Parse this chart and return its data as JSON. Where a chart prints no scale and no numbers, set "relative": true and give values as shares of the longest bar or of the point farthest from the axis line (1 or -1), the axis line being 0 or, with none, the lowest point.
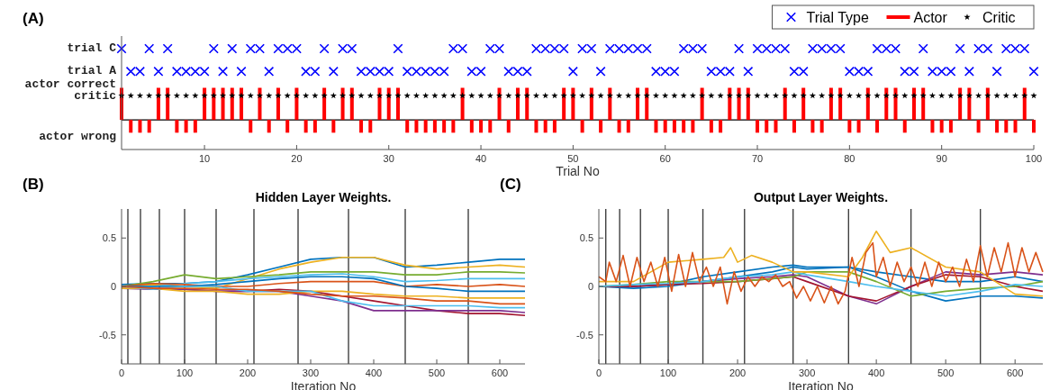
{
  "chart_data": [
    {
      "type": "scatter",
      "relative": true,
      "annotations": [
        "(A)",
        "trial C",
        "trial A",
        "actor correct",
        "critic",
        "actor wrong"
      ],
      "xlabel": "Trial No",
      "xlim": [
        1,
        100
      ],
      "xticks": [
        10,
        20,
        30,
        40,
        50,
        60,
        70,
        80,
        90,
        100
      ],
      "legend": "top right",
      "x": [
        1,
        2,
        3,
        4,
        5,
        6,
        7,
        8,
        9,
        10,
        11,
        12,
        13,
        14,
        15,
        16,
        17,
        18,
        19,
        20,
        21,
        22,
        23,
        24,
        25,
        26,
        27,
        28,
        29,
        30,
        31,
        32,
        33,
        34,
        35,
        36,
        37,
        38,
        39,
        40,
        41,
        42,
        43,
        44,
        45,
        46,
        47,
        48,
        49,
        50,
        51,
        52,
        53,
        54,
        55,
        56,
        57,
        58,
        59,
        60,
        61,
        62,
        63,
        64,
        65,
        66,
        67,
        68,
        69,
        70,
        71,
        72,
        73,
        74,
        75,
        76,
        77,
        78,
        79,
        80,
        81,
        82,
        83,
        84,
        85,
        86,
        87,
        88,
        89,
        90,
        91,
        92,
        93,
        94,
        95,
        96,
        97,
        98,
        99,
        100
      ],
      "series": [
        {
          "name": "Trial Type",
          "marker": "cross",
          "color": "#0000ff",
          "values": [
            1,
            0.68,
            0.68,
            1,
            0.68,
            1,
            0.68,
            0.68,
            0.68,
            0.68,
            1,
            0.68,
            1,
            0.68,
            1,
            1,
            0.68,
            1,
            1,
            1,
            0.68,
            0.68,
            1,
            0.68,
            1,
            1,
            0.68,
            0.68,
            0.68,
            0.68,
            1,
            0.68,
            0.68,
            0.68,
            0.68,
            0.68,
            1,
            1,
            0.68,
            0.68,
            1,
            1,
            0.68,
            0.68,
            0.68,
            1,
            1,
            1,
            1,
            0.68,
            1,
            1,
            0.68,
            1,
            1,
            1,
            1,
            1,
            0.68,
            0.68,
            0.68,
            1,
            1,
            1,
            0.68,
            0.68,
            0.68,
            1,
            0.68,
            1,
            1,
            1,
            1,
            0.68,
            0.68,
            1,
            1,
            1,
            1,
            0.68,
            0.68,
            0.68,
            1,
            1,
            1,
            0.68,
            0.68,
            1,
            0.68,
            0.68,
            0.68,
            1,
            0.68,
            1,
            1,
            0.68,
            1,
            1,
            1,
            0.68
          ]
        },
        {
          "name": "Actor",
          "type": "bar",
          "color": "#ff0000",
          "values": [
            0.45,
            -0.18,
            -0.18,
            -0.18,
            0.45,
            0.45,
            -0.18,
            -0.18,
            -0.18,
            0.45,
            0.45,
            0.45,
            0.45,
            0.45,
            -0.18,
            0.45,
            -0.18,
            0.45,
            -0.18,
            0.45,
            -0.18,
            -0.18,
            0.45,
            -0.18,
            0.45,
            0.45,
            -0.18,
            -0.18,
            0.45,
            0.45,
            0.45,
            -0.18,
            -0.18,
            -0.18,
            -0.18,
            -0.18,
            -0.18,
            0.45,
            -0.18,
            -0.18,
            -0.18,
            0.45,
            -0.18,
            0.45,
            0.45,
            -0.18,
            -0.18,
            -0.18,
            0.45,
            0.45,
            -0.18,
            0.45,
            -0.18,
            0.45,
            -0.18,
            -0.18,
            0.45,
            0.45,
            -0.18,
            -0.18,
            -0.18,
            -0.18,
            -0.18,
            0.45,
            -0.18,
            -0.18,
            0.45,
            0.45,
            0.45,
            -0.18,
            -0.18,
            -0.18,
            0.45,
            -0.18,
            0.45,
            -0.18,
            -0.18,
            0.45,
            0.45,
            -0.18,
            -0.18,
            0.45,
            -0.18,
            0.45,
            0.45,
            -0.18,
            0.45,
            0.45,
            -0.18,
            -0.18,
            -0.18,
            0.45,
            0.45,
            -0.18,
            0.45,
            -0.18,
            -0.18,
            -0.18,
            0.45,
            -0.18
          ]
        },
        {
          "name": "Critic",
          "marker": "star",
          "color": "#000000",
          "values": [
            0.34,
            0.34,
            0.34,
            0.34,
            0.34,
            0.34,
            0.34,
            0.34,
            0.34,
            0.34,
            0.34,
            0.34,
            0.34,
            0.34,
            0.34,
            0.34,
            0.34,
            0.34,
            0.34,
            0.34,
            0.34,
            0.34,
            0.34,
            0.34,
            0.34,
            0.34,
            0.34,
            0.34,
            0.34,
            0.34,
            0.34,
            0.34,
            0.34,
            0.34,
            0.34,
            0.34,
            0.34,
            0.34,
            0.34,
            0.34,
            0.34,
            0.34,
            0.34,
            0.34,
            0.34,
            0.34,
            0.34,
            0.34,
            0.34,
            0.34,
            0.34,
            0.34,
            0.34,
            0.34,
            0.34,
            0.34,
            0.34,
            0.34,
            0.34,
            0.34,
            0.34,
            0.34,
            0.34,
            0.34,
            0.34,
            0.34,
            0.34,
            0.34,
            0.34,
            0.34,
            0.34,
            0.34,
            0.34,
            0.34,
            0.34,
            0.34,
            0.34,
            0.34,
            0.34,
            0.34,
            0.34,
            0.34,
            0.34,
            0.34,
            0.34,
            0.34,
            0.34,
            0.34,
            0.34,
            0.34,
            0.34,
            0.34,
            0.34,
            0.34,
            0.34,
            0.34,
            0.34,
            0.34,
            0.34,
            0.34
          ]
        }
      ]
    },
    {
      "type": "line",
      "annotations": [
        "(B)"
      ],
      "title": "Hidden Layer Weights.",
      "xlabel": "Iteration No",
      "xlim": [
        0,
        640
      ],
      "xticks": [
        0,
        100,
        200,
        300,
        400,
        500,
        600
      ],
      "ylim": [
        -0.8,
        0.8
      ],
      "yticks": [
        -0.5,
        0,
        0.5
      ],
      "ref_lines": [
        {
          "axis": "x",
          "value": 10,
          "color": "#404040"
        },
        {
          "axis": "x",
          "value": 30,
          "color": "#404040"
        },
        {
          "axis": "x",
          "value": 60,
          "color": "#404040"
        },
        {
          "axis": "x",
          "value": 100,
          "color": "#404040"
        },
        {
          "axis": "x",
          "value": 150,
          "color": "#404040"
        },
        {
          "axis": "x",
          "value": 210,
          "color": "#404040"
        },
        {
          "axis": "x",
          "value": 280,
          "color": "#404040"
        },
        {
          "axis": "x",
          "value": 360,
          "color": "#404040"
        },
        {
          "axis": "x",
          "value": 450,
          "color": "#404040"
        },
        {
          "axis": "x",
          "value": 550,
          "color": "#404040"
        }
      ],
      "x": [
        0,
        50,
        100,
        150,
        200,
        250,
        300,
        350,
        400,
        450,
        500,
        550,
        600,
        640
      ],
      "series": [
        {
          "color": "#0072bd",
          "values": [
            0.02,
            0.03,
            0.03,
            0.05,
            0.12,
            0.2,
            0.28,
            0.3,
            0.3,
            0.2,
            0.22,
            0.25,
            0.28,
            0.28
          ]
        },
        {
          "color": "#edb120",
          "values": [
            0,
            0.02,
            0,
            -0.02,
            0.08,
            0.18,
            0.25,
            0.3,
            0.3,
            0.22,
            0.18,
            0.2,
            0.22,
            0.2
          ]
        },
        {
          "color": "#77ac30",
          "values": [
            0,
            0.05,
            0.12,
            0.08,
            0.1,
            0.12,
            0.15,
            0.15,
            0.15,
            0.12,
            0.12,
            0.15,
            0.15,
            0.14
          ]
        },
        {
          "color": "#4dbeee",
          "values": [
            0,
            0,
            0.03,
            0.05,
            0.08,
            0.1,
            0.12,
            0.13,
            0.1,
            0.05,
            0.06,
            0.08,
            0.08,
            0.08
          ]
        },
        {
          "color": "#d95319",
          "values": [
            0,
            0.03,
            0.02,
            0,
            0,
            0.03,
            0.05,
            0.05,
            0.05,
            0,
            0.02,
            0,
            0.02,
            0
          ]
        },
        {
          "color": "#a2142f",
          "values": [
            0,
            -0.02,
            -0.03,
            -0.05,
            -0.05,
            -0.03,
            -0.05,
            -0.1,
            -0.15,
            -0.2,
            -0.25,
            -0.28,
            -0.28,
            -0.3
          ]
        },
        {
          "color": "#7e2f8e",
          "values": [
            -0.02,
            -0.03,
            -0.03,
            -0.05,
            -0.05,
            -0.05,
            -0.1,
            -0.15,
            -0.25,
            -0.25,
            -0.25,
            -0.25,
            -0.25,
            -0.27
          ]
        },
        {
          "color": "#edb120",
          "values": [
            -0.02,
            -0.02,
            -0.05,
            -0.05,
            -0.08,
            -0.08,
            -0.05,
            -0.05,
            -0.08,
            -0.1,
            -0.1,
            -0.12,
            -0.12,
            -0.12
          ]
        },
        {
          "color": "#0072bd",
          "values": [
            0,
            0,
            0,
            0.02,
            0.05,
            0.08,
            0.1,
            0.1,
            0.08,
            0,
            -0.02,
            -0.05,
            -0.05,
            -0.05
          ]
        },
        {
          "color": "#4dbeee",
          "values": [
            0,
            -0.03,
            0,
            0,
            -0.05,
            -0.05,
            -0.05,
            -0.15,
            -0.2,
            -0.2,
            -0.2,
            -0.2,
            -0.22,
            -0.22
          ]
        },
        {
          "color": "#d95319",
          "values": [
            0,
            -0.02,
            -0.02,
            -0.03,
            -0.03,
            -0.05,
            -0.08,
            -0.1,
            -0.1,
            -0.12,
            -0.15,
            -0.15,
            -0.18,
            -0.18
          ]
        }
      ]
    },
    {
      "type": "line",
      "annotations": [
        "(C)"
      ],
      "title": "Output Layer Weights.",
      "xlabel": "Iteration No",
      "xlim": [
        0,
        640
      ],
      "xticks": [
        0,
        100,
        200,
        300,
        400,
        500,
        600
      ],
      "ylim": [
        -0.8,
        0.8
      ],
      "yticks": [
        -0.5,
        0,
        0.5
      ],
      "ref_lines": [
        {
          "axis": "x",
          "value": 10,
          "color": "#404040"
        },
        {
          "axis": "x",
          "value": 30,
          "color": "#404040"
        },
        {
          "axis": "x",
          "value": 60,
          "color": "#404040"
        },
        {
          "axis": "x",
          "value": 100,
          "color": "#404040"
        },
        {
          "axis": "x",
          "value": 150,
          "color": "#404040"
        },
        {
          "axis": "x",
          "value": 210,
          "color": "#404040"
        },
        {
          "axis": "x",
          "value": 280,
          "color": "#404040"
        },
        {
          "axis": "x",
          "value": 360,
          "color": "#404040"
        },
        {
          "axis": "x",
          "value": 450,
          "color": "#404040"
        },
        {
          "axis": "x",
          "value": 550,
          "color": "#404040"
        }
      ],
      "x": [
        0,
        50,
        100,
        150,
        200,
        250,
        280,
        300,
        360,
        400,
        450,
        500,
        550,
        600,
        640
      ],
      "series": [
        {
          "color": "#0072bd",
          "values": [
            0,
            0,
            0.02,
            0.1,
            0.15,
            0.2,
            0.22,
            0.2,
            0.2,
            0.15,
            0.1,
            0.05,
            0.05,
            0.1,
            0.05
          ]
        },
        {
          "color": "#0072bd",
          "values": [
            0,
            -0.02,
            0,
            0.05,
            0.1,
            0.15,
            0.2,
            0.18,
            0.2,
            0.1,
            -0.05,
            -0.15,
            -0.1,
            -0.1,
            -0.12
          ]
        },
        {
          "color": "#7e2f8e",
          "values": [
            0,
            0,
            0.02,
            0.05,
            0.08,
            0.1,
            0.12,
            0.1,
            -0.1,
            -0.18,
            0,
            0.15,
            0.12,
            0.15,
            0.12
          ]
        },
        {
          "color": "#a2142f",
          "values": [
            0,
            0,
            0.02,
            0.03,
            0.05,
            0.08,
            0.1,
            0.05,
            -0.1,
            -0.15,
            0,
            0.12,
            0.1,
            0,
            -0.05
          ]
        },
        {
          "color": "#77ac30",
          "values": [
            0,
            0.02,
            0.05,
            0.05,
            0.05,
            0.08,
            0.1,
            0.15,
            0.15,
            0.05,
            -0.1,
            -0.05,
            -0.02,
            0,
            0.05
          ]
        },
        {
          "color": "#4dbeee",
          "values": [
            0,
            0.02,
            0.03,
            0.05,
            0.1,
            0.12,
            0.15,
            0.12,
            0.05,
            0,
            -0.05,
            -0.1,
            -0.05,
            0.02,
            0
          ]
        },
        {
          "color": "#edb120",
          "x": [
            0,
            50,
            100,
            150,
            180,
            190,
            200,
            220,
            250,
            280,
            300,
            360,
            380,
            400,
            420,
            450,
            500,
            550,
            600,
            640
          ],
          "values": [
            0.05,
            0.05,
            0.25,
            0.28,
            0.3,
            0.4,
            0.25,
            0.32,
            0.25,
            0.15,
            0.15,
            0.1,
            0.3,
            0.57,
            0.35,
            0.4,
            0.2,
            0.15,
            -0.08,
            -0.1
          ]
        },
        {
          "color": "#d95319",
          "x": [
            0,
            10,
            15,
            25,
            35,
            45,
            55,
            65,
            75,
            85,
            95,
            105,
            115,
            125,
            135,
            145,
            155,
            165,
            175,
            185,
            195,
            205,
            215,
            225,
            235,
            245,
            255,
            265,
            275,
            285,
            295,
            305,
            315,
            325,
            335,
            345,
            355,
            365,
            375,
            385,
            395,
            400,
            410,
            420,
            430,
            440,
            450,
            460,
            470,
            480,
            490,
            500,
            510,
            520,
            530,
            540,
            550,
            560,
            570,
            580,
            590,
            600,
            610,
            620,
            630,
            640
          ],
          "values": [
            0.1,
            0.05,
            0.25,
            0.05,
            0.32,
            0,
            0.3,
            0.05,
            0.25,
            0,
            0.3,
            -0.05,
            0.33,
            0,
            0.35,
            0.05,
            0.2,
            0,
            0.2,
            -0.18,
            0.15,
            -0.05,
            0.1,
            0,
            0.1,
            0.05,
            0.12,
            0,
            0.05,
            -0.12,
            0,
            -0.15,
            0,
            -0.17,
            0,
            -0.18,
            -0.05,
            0.3,
            0,
            0.35,
            0.45,
            0.1,
            0.3,
            0,
            0.25,
            0.05,
            0.2,
            0,
            0.25,
            0,
            0.25,
            0.05,
            0.2,
            0,
            0.28,
            0.05,
            0.42,
            0.1,
            0.4,
            0.15,
            0.45,
            0.1,
            0.4,
            0.15,
            0.35,
            0.15
          ]
        }
      ]
    }
  ]
}
